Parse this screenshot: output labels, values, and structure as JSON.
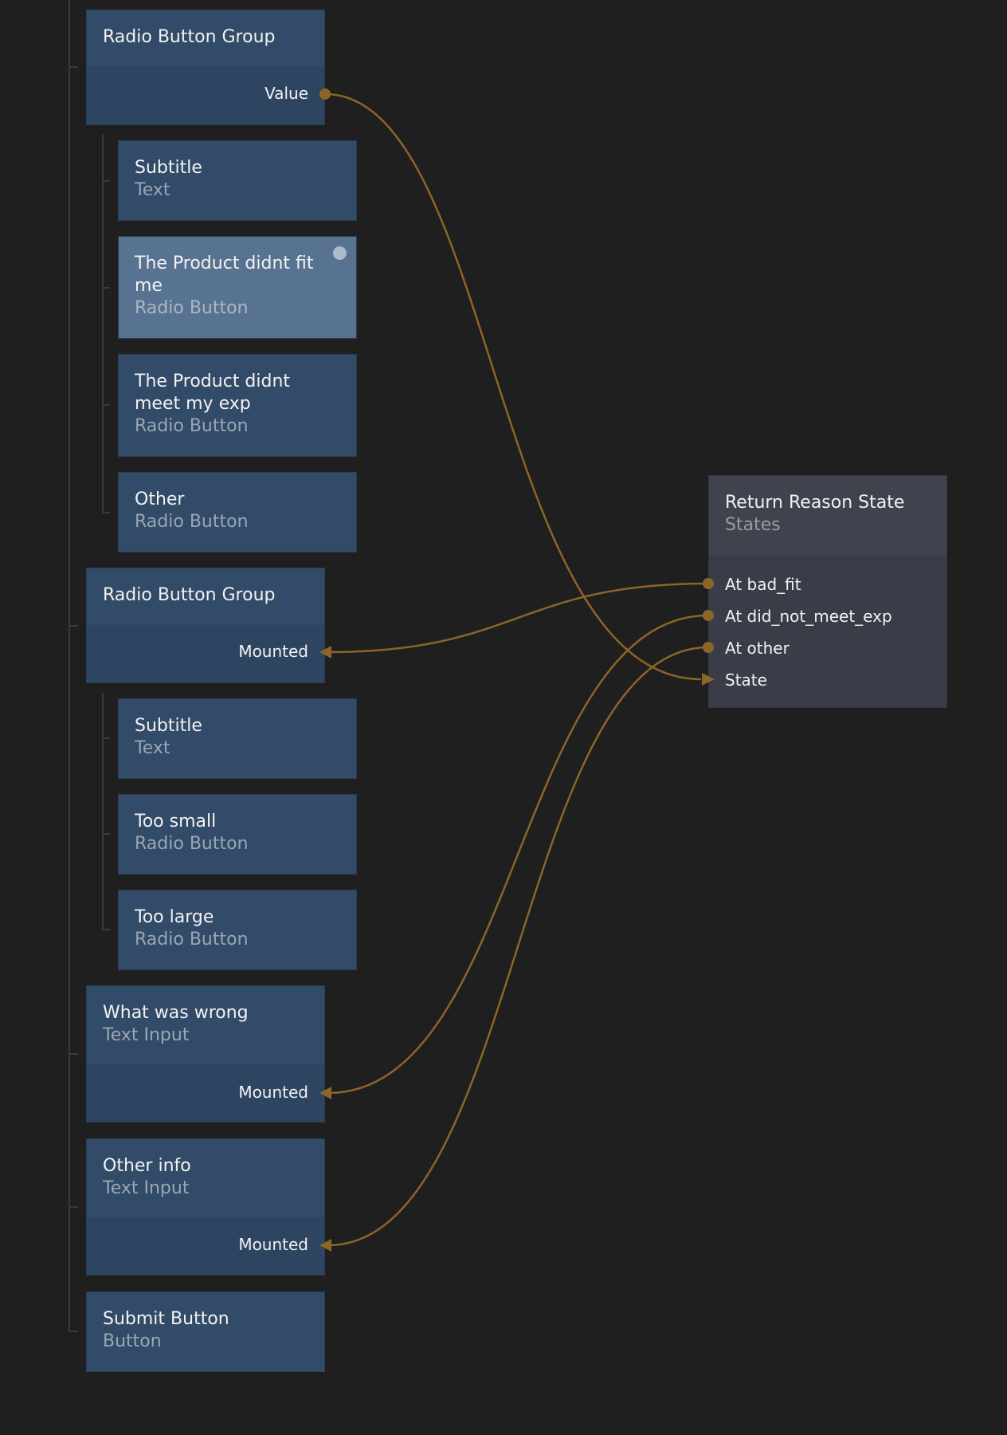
{
  "nodes": {
    "rbg1": {
      "title": "Radio Button Group",
      "port": "Value"
    },
    "subtitle1": {
      "title": "Subtitle",
      "type": "Text"
    },
    "fit": {
      "title": "The Product didnt fit me",
      "type": "Radio Button"
    },
    "exp": {
      "title": "The Product didnt meet my exp",
      "type": "Radio Button"
    },
    "other": {
      "title": "Other",
      "type": "Radio Button"
    },
    "rbg2": {
      "title": "Radio Button Group",
      "port": "Mounted"
    },
    "subtitle2": {
      "title": "Subtitle",
      "type": "Text"
    },
    "small": {
      "title": "Too small",
      "type": "Radio Button"
    },
    "large": {
      "title": "Too large",
      "type": "Radio Button"
    },
    "wrong": {
      "title": "What was wrong",
      "type": "Text Input",
      "port": "Mounted"
    },
    "otherinfo": {
      "title": "Other info",
      "type": "Text Input",
      "port": "Mounted"
    },
    "submit": {
      "title": "Submit Button",
      "type": "Button"
    }
  },
  "states": {
    "title": "Return Reason State",
    "type": "States",
    "ports": [
      "At bad_fit",
      "At did_not_meet_exp",
      "At other",
      "State"
    ]
  },
  "colors": {
    "connection": "#8c6528",
    "node": "#324b68",
    "selected_node": "#587391",
    "states_node": "#3a3d48"
  }
}
